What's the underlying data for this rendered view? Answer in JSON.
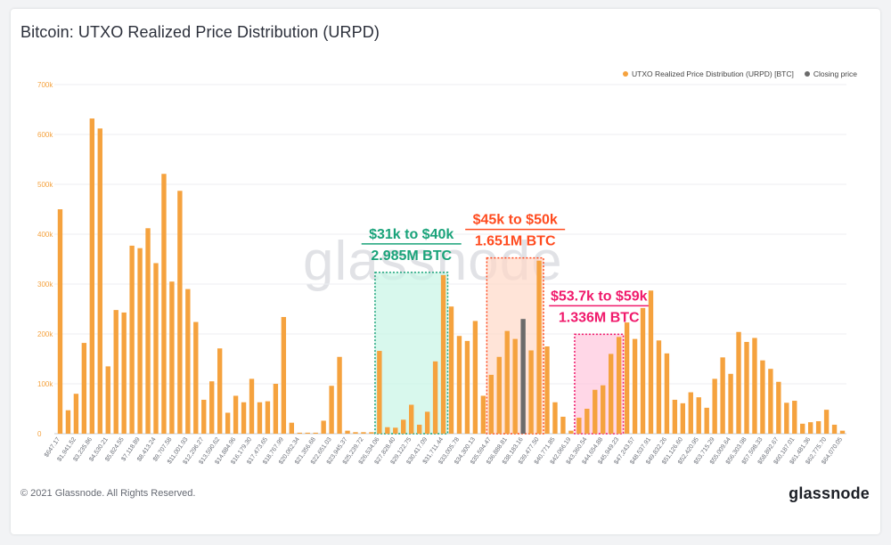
{
  "page": {
    "title": "Bitcoin: UTXO Realized Price Distribution (URPD)",
    "copyright": "© 2021 Glassnode. All Rights Reserved.",
    "logo": "glassnode",
    "watermark": "glassnode"
  },
  "legend": {
    "urpd_label": "UTXO Realized Price Distribution (URPD) [BTC]",
    "closing_label": "Closing price",
    "urpd_color": "#f5a23e",
    "closing_color": "#6b6b6b"
  },
  "annotations": [
    {
      "line1": "$31k to $40k",
      "line2": "2.985M BTC",
      "color": "#1aa37a",
      "fill": "#c8f5e6",
      "from_index": 40,
      "to_index": 48
    },
    {
      "line1": "$45k to $50k",
      "line2": "1.651M BTC",
      "color": "#ff4b1f",
      "fill": "#ffd9c7",
      "from_index": 54,
      "to_index": 60
    },
    {
      "line1": "$53.7k to $59k",
      "line2": "1.336M BTC",
      "color": "#f0196b",
      "fill": "#ffc6dd",
      "from_index": 65,
      "to_index": 70
    }
  ],
  "chart_data": {
    "type": "bar",
    "title": "Bitcoin: UTXO Realized Price Distribution (URPD)",
    "xlabel": "",
    "ylabel": "",
    "ylim": [
      0,
      700000
    ],
    "yticks": [
      0,
      100000,
      200000,
      300000,
      400000,
      500000,
      600000,
      700000
    ],
    "ytick_labels": [
      "0",
      "100k",
      "200k",
      "300k",
      "400k",
      "500k",
      "600k",
      "700k"
    ],
    "grid": true,
    "legend_position": "top-right",
    "closing_price_index": 58,
    "x_tick_labels": [
      "$647.17",
      "$1,941.52",
      "$3,235.86",
      "$4,530.21",
      "$5,824.55",
      "$7,118.89",
      "$8,413.24",
      "$9,707.58",
      "$11,001.93",
      "$12,296.27",
      "$13,590.62",
      "$14,884.96",
      "$16,179.30",
      "$17,473.65",
      "$18,767.99",
      "$20,062.34",
      "$21,356.68",
      "$22,651.03",
      "$23,945.37",
      "$25,239.72",
      "$26,534.06",
      "$27,828.40",
      "$29,122.75",
      "$30,417.09",
      "$31,711.44",
      "$33,005.78",
      "$34,300.13",
      "$35,594.47",
      "$36,888.81",
      "$38,183.16",
      "$39,477.50",
      "$40,771.85",
      "$42,066.19",
      "$43,360.54",
      "$44,654.88",
      "$45,949.23",
      "$47,243.57",
      "$48,537.91",
      "$49,832.26",
      "$51,126.60",
      "$52,420.95",
      "$53,715.29",
      "$55,009.64",
      "$56,303.98",
      "$57,598.33",
      "$58,892.67",
      "$60,187.01",
      "$61,481.36",
      "$62,775.70",
      "$64,070.05"
    ],
    "series": [
      {
        "name": "UTXO Realized Price Distribution (URPD) [BTC]",
        "color": "#f5a23e",
        "values": [
          450000,
          47000,
          80000,
          182000,
          632000,
          612000,
          135000,
          248000,
          243000,
          377000,
          372000,
          412000,
          342000,
          521000,
          305000,
          487000,
          290000,
          224000,
          68000,
          105000,
          171000,
          42000,
          76000,
          63000,
          110000,
          63000,
          65000,
          100000,
          234000,
          22000,
          2000,
          2000,
          2000,
          26000,
          96000,
          154000,
          6000,
          3000,
          3000,
          3000,
          166000,
          13000,
          12000,
          28000,
          58000,
          18000,
          44000,
          145000,
          318000,
          255000,
          196000,
          186000,
          226000,
          76000,
          118000,
          154000,
          206000,
          190000,
          230000,
          167000,
          347000,
          175000,
          63000,
          34000,
          6000,
          32000,
          50000,
          88000,
          97000,
          160000,
          194000,
          223000,
          190000,
          252000,
          287000,
          187000,
          161000,
          68000,
          61000,
          83000,
          73000,
          52000,
          110000,
          153000,
          120000,
          204000,
          184000,
          192000,
          147000,
          130000,
          104000,
          62000,
          66000,
          20000,
          23000,
          25000,
          48000,
          18000,
          6000
        ]
      }
    ]
  }
}
